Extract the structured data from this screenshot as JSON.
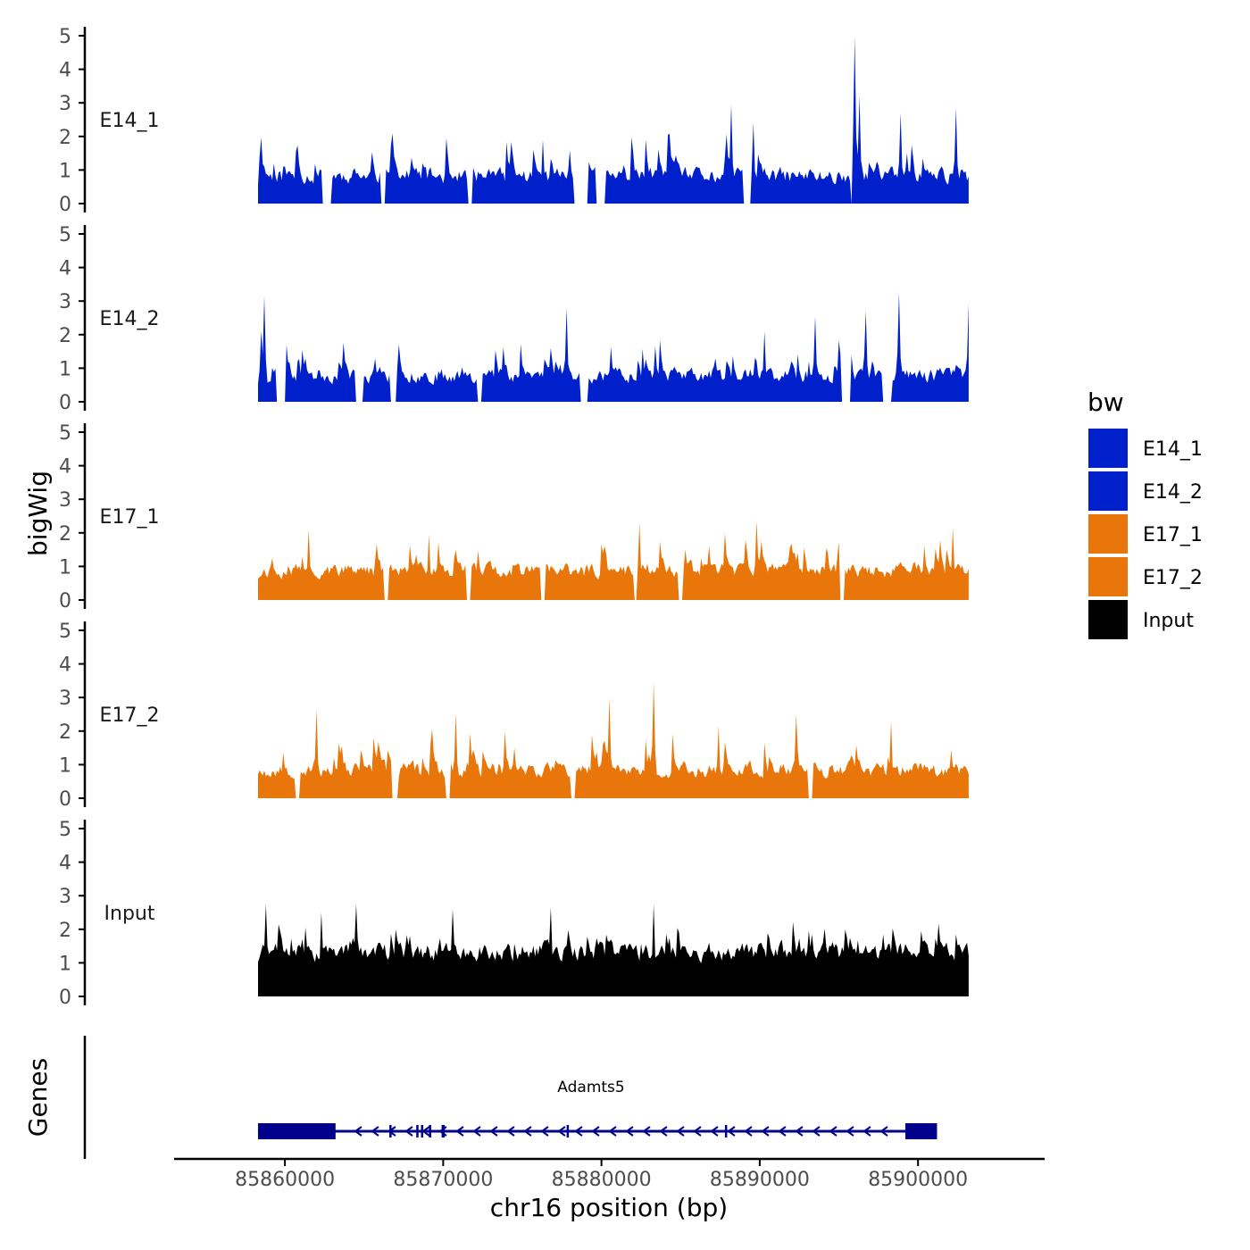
{
  "chart_data": {
    "type": "area",
    "ylabel": "bigWig",
    "xlabel": "chr16 position (bp)",
    "genes_label": "Genes",
    "xlim": [
      85853000,
      85908000
    ],
    "x_ticks": [
      85860000,
      85870000,
      85880000,
      85890000,
      85900000
    ],
    "x_tick_labels": [
      "85860000",
      "85870000",
      "85880000",
      "85890000",
      "85900000"
    ],
    "ylim": [
      0,
      5
    ],
    "y_ticks": [
      0,
      1,
      2,
      3,
      4,
      5
    ],
    "y_tick_labels": [
      "0",
      "1",
      "2",
      "3",
      "4",
      "5"
    ],
    "signal_range": [
      85858300,
      85903200
    ],
    "legend": {
      "title": "bw",
      "placement": "right",
      "entries": [
        {
          "label": "E14_1",
          "color": "#0020cc"
        },
        {
          "label": "E14_2",
          "color": "#0020cc"
        },
        {
          "label": "E17_1",
          "color": "#e8760a"
        },
        {
          "label": "E17_2",
          "color": "#e8760a"
        },
        {
          "label": "Input",
          "color": "#000000"
        }
      ]
    },
    "tracks": [
      {
        "name": "E14_1",
        "color": "#0020cc",
        "seed": 11,
        "base": 0.45,
        "var": 0.75,
        "spike_prob": 0.09,
        "spike_max": 1.9,
        "gaps": [
          [
            85862400,
            85862900
          ],
          [
            85866100,
            85866300
          ],
          [
            85871600,
            85871800
          ],
          [
            85878300,
            85879100
          ],
          [
            85879700,
            85880200
          ],
          [
            85889000,
            85889400
          ],
          [
            85895800,
            85896200
          ]
        ],
        "peaks": [
          {
            "x": 85896000,
            "y": 4.95
          },
          {
            "x": 85896300,
            "y": 3.2
          },
          {
            "x": 85888200,
            "y": 2.95
          },
          {
            "x": 85902400,
            "y": 2.85
          },
          {
            "x": 85898900,
            "y": 2.7
          },
          {
            "x": 85889600,
            "y": 2.4
          },
          {
            "x": 85876300,
            "y": 1.9
          },
          {
            "x": 85884200,
            "y": 2.05
          }
        ]
      },
      {
        "name": "E14_2",
        "color": "#0020cc",
        "seed": 23,
        "base": 0.45,
        "var": 0.7,
        "spike_prob": 0.08,
        "spike_max": 1.7,
        "gaps": [
          [
            85859500,
            85860000
          ],
          [
            85864500,
            85864900
          ],
          [
            85866700,
            85867000
          ],
          [
            85872200,
            85872400
          ],
          [
            85878700,
            85879100
          ],
          [
            85895200,
            85895700
          ],
          [
            85897800,
            85898300
          ]
        ],
        "peaks": [
          {
            "x": 85858700,
            "y": 3.15
          },
          {
            "x": 85858500,
            "y": 2.1
          },
          {
            "x": 85877800,
            "y": 2.8
          },
          {
            "x": 85898800,
            "y": 3.25
          },
          {
            "x": 85903200,
            "y": 2.95
          },
          {
            "x": 85896700,
            "y": 2.7
          },
          {
            "x": 85893500,
            "y": 2.55
          },
          {
            "x": 85890300,
            "y": 2.1
          }
        ]
      },
      {
        "name": "E17_1",
        "color": "#e8760a",
        "seed": 37,
        "base": 0.55,
        "var": 0.65,
        "spike_prob": 0.11,
        "spike_max": 1.6,
        "gaps": [
          [
            85866300,
            85866500
          ],
          [
            85871500,
            85871700
          ],
          [
            85876200,
            85876400
          ],
          [
            85882100,
            85882500
          ],
          [
            85884900,
            85885100
          ],
          [
            85895100,
            85895300
          ]
        ],
        "peaks": [
          {
            "x": 85882400,
            "y": 2.3
          },
          {
            "x": 85887800,
            "y": 2.0
          },
          {
            "x": 85889800,
            "y": 2.35
          },
          {
            "x": 85861500,
            "y": 2.1
          },
          {
            "x": 85902200,
            "y": 2.15
          },
          {
            "x": 85869100,
            "y": 1.95
          }
        ]
      },
      {
        "name": "E17_2",
        "color": "#e8760a",
        "seed": 53,
        "base": 0.5,
        "var": 0.7,
        "spike_prob": 0.1,
        "spike_max": 1.8,
        "gaps": [
          [
            85860700,
            85860900
          ],
          [
            85866800,
            85867100
          ],
          [
            85870200,
            85870400
          ],
          [
            85878100,
            85878300
          ],
          [
            85893100,
            85893300
          ]
        ],
        "peaks": [
          {
            "x": 85883300,
            "y": 3.45
          },
          {
            "x": 85880500,
            "y": 3.0
          },
          {
            "x": 85870800,
            "y": 2.55
          },
          {
            "x": 85862000,
            "y": 2.65
          },
          {
            "x": 85892300,
            "y": 2.5
          },
          {
            "x": 85898300,
            "y": 2.3
          },
          {
            "x": 85887400,
            "y": 2.15
          }
        ]
      },
      {
        "name": "Input",
        "color": "#000000",
        "seed": 71,
        "base": 0.9,
        "var": 0.85,
        "spike_prob": 0.12,
        "spike_max": 1.5,
        "gaps": [],
        "peaks": [
          {
            "x": 85883300,
            "y": 2.75
          },
          {
            "x": 85864500,
            "y": 2.75
          },
          {
            "x": 85858800,
            "y": 2.75
          },
          {
            "x": 85876800,
            "y": 2.65
          },
          {
            "x": 85862300,
            "y": 2.5
          },
          {
            "x": 85870600,
            "y": 2.6
          }
        ]
      }
    ],
    "gene": {
      "name": "Adamts5",
      "color": "#00008b",
      "strand": "-",
      "start": 85858300,
      "end": 85901200,
      "exons": [
        {
          "start": 85858300,
          "end": 85863200,
          "type": "thick"
        },
        {
          "start": 85899200,
          "end": 85901200,
          "type": "thick"
        },
        {
          "start": 85866600,
          "end": 85866700,
          "type": "mark"
        },
        {
          "start": 85868300,
          "end": 85868400,
          "type": "mark"
        },
        {
          "start": 85868600,
          "end": 85868700,
          "type": "mark"
        },
        {
          "start": 85869100,
          "end": 85869200,
          "type": "mark"
        },
        {
          "start": 85869900,
          "end": 85870100,
          "type": "mark"
        },
        {
          "start": 85877800,
          "end": 85877900,
          "type": "mark"
        },
        {
          "start": 85887800,
          "end": 85887900,
          "type": "mark"
        }
      ]
    }
  }
}
